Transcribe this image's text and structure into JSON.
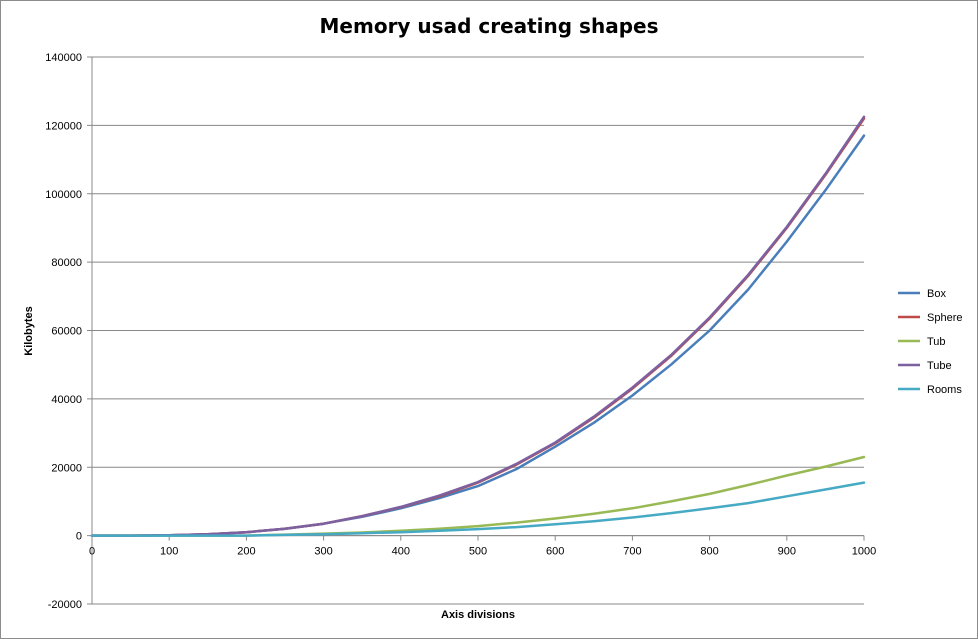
{
  "chart_data": {
    "type": "line",
    "title": "Memory usad creating shapes",
    "xlabel": "Axis divisions",
    "ylabel": "Kilobytes",
    "xlim": [
      0,
      1000
    ],
    "ylim": [
      -20000,
      140000
    ],
    "x_ticks": [
      0,
      100,
      200,
      300,
      400,
      500,
      600,
      700,
      800,
      900,
      1000
    ],
    "y_ticks": [
      -20000,
      0,
      20000,
      40000,
      60000,
      80000,
      100000,
      120000,
      140000
    ],
    "grid": "horizontal",
    "legend_position": "right",
    "series": [
      {
        "name": "Box",
        "color": "#4a7ebb",
        "x": [
          0,
          50,
          100,
          150,
          200,
          250,
          300,
          350,
          400,
          450,
          500,
          550,
          600,
          650,
          700,
          750,
          800,
          850,
          900,
          950,
          1000
        ],
        "y": [
          0,
          0,
          100,
          400,
          1000,
          2000,
          3500,
          5500,
          8000,
          11000,
          14500,
          19500,
          26000,
          33000,
          41000,
          50000,
          60000,
          72000,
          86000,
          101000,
          117000
        ]
      },
      {
        "name": "Sphere",
        "color": "#be4b48",
        "x": [
          0,
          50,
          100,
          150,
          200,
          250,
          300,
          350,
          400,
          450,
          500,
          550,
          600,
          650,
          700,
          750,
          800,
          850,
          900,
          950,
          1000
        ],
        "y": [
          0,
          0,
          100,
          400,
          1000,
          2000,
          3500,
          5700,
          8300,
          11500,
          15500,
          20800,
          27000,
          34500,
          43000,
          52500,
          63500,
          76000,
          90000,
          105500,
          122000
        ]
      },
      {
        "name": "Tub",
        "color": "#98b954",
        "x": [
          0,
          50,
          100,
          150,
          200,
          250,
          300,
          350,
          400,
          450,
          500,
          550,
          600,
          650,
          700,
          750,
          800,
          850,
          900,
          950,
          1000
        ],
        "y": [
          0,
          0,
          0,
          0,
          0,
          300,
          600,
          900,
          1400,
          2000,
          2800,
          3800,
          5000,
          6400,
          8000,
          10000,
          12200,
          14800,
          17600,
          20200,
          23000
        ]
      },
      {
        "name": "Tube",
        "color": "#7d60a0",
        "x": [
          0,
          50,
          100,
          150,
          200,
          250,
          300,
          350,
          400,
          450,
          500,
          550,
          600,
          650,
          700,
          750,
          800,
          850,
          900,
          950,
          1000
        ],
        "y": [
          0,
          0,
          100,
          400,
          1000,
          2000,
          3500,
          5700,
          8400,
          11700,
          15700,
          21000,
          27200,
          34800,
          43300,
          52800,
          63800,
          76300,
          90300,
          105800,
          122500
        ]
      },
      {
        "name": "Rooms",
        "color": "#46aac5",
        "x": [
          0,
          50,
          100,
          150,
          200,
          250,
          300,
          350,
          400,
          450,
          500,
          550,
          600,
          650,
          700,
          750,
          800,
          850,
          900,
          950,
          1000
        ],
        "y": [
          0,
          0,
          0,
          0,
          0,
          200,
          400,
          700,
          1000,
          1400,
          1900,
          2500,
          3300,
          4200,
          5300,
          6600,
          8000,
          9500,
          11500,
          13500,
          15500
        ]
      }
    ]
  }
}
